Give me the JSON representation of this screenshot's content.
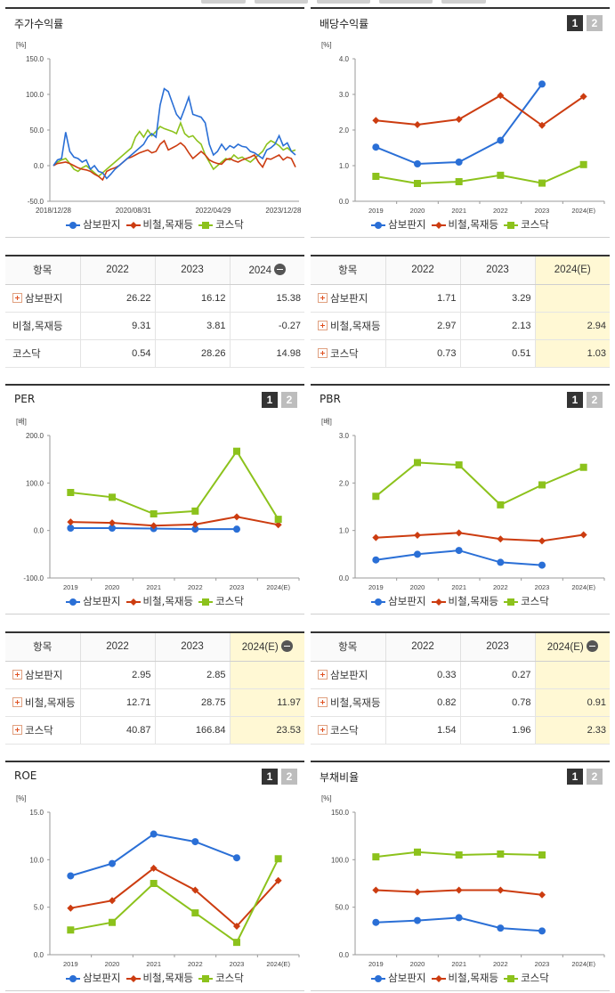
{
  "colors": {
    "sambo": "#2a6fd6",
    "nonmetal": "#cc3c10",
    "kosdaq": "#8cc21c"
  },
  "legend_names": [
    "삼보판지",
    "비철,목재등",
    "코스닥"
  ],
  "tables": [
    {
      "head": [
        "항목",
        "2022",
        "2023",
        "2024"
      ],
      "minus_icon": true,
      "est_col": false,
      "rows": [
        {
          "name": "삼보판지",
          "plus": true,
          "vals": [
            "26.22",
            "16.12",
            "15.38"
          ]
        },
        {
          "name": "비철,목재등",
          "plus": false,
          "vals": [
            "9.31",
            "3.81",
            "-0.27"
          ]
        },
        {
          "name": "코스닥",
          "plus": false,
          "vals": [
            "0.54",
            "28.26",
            "14.98"
          ]
        }
      ]
    },
    {
      "head": [
        "항목",
        "2022",
        "2023",
        "2024(E)"
      ],
      "minus_icon": false,
      "est_col": true,
      "rows": [
        {
          "name": "삼보판지",
          "plus": true,
          "vals": [
            "1.71",
            "3.29",
            ""
          ]
        },
        {
          "name": "비철,목재등",
          "plus": true,
          "vals": [
            "2.97",
            "2.13",
            "2.94"
          ]
        },
        {
          "name": "코스닥",
          "plus": true,
          "vals": [
            "0.73",
            "0.51",
            "1.03"
          ]
        }
      ]
    },
    {
      "head": [
        "항목",
        "2022",
        "2023",
        "2024(E)"
      ],
      "minus_icon": true,
      "est_col": true,
      "rows": [
        {
          "name": "삼보판지",
          "plus": true,
          "vals": [
            "2.95",
            "2.85",
            ""
          ]
        },
        {
          "name": "비철,목재등",
          "plus": true,
          "vals": [
            "12.71",
            "28.75",
            "11.97"
          ]
        },
        {
          "name": "코스닥",
          "plus": true,
          "vals": [
            "40.87",
            "166.84",
            "23.53"
          ]
        }
      ]
    },
    {
      "head": [
        "항목",
        "2022",
        "2023",
        "2024(E)"
      ],
      "minus_icon": true,
      "est_col": true,
      "rows": [
        {
          "name": "삼보판지",
          "plus": true,
          "vals": [
            "0.33",
            "0.27",
            ""
          ]
        },
        {
          "name": "비철,목재등",
          "plus": true,
          "vals": [
            "0.82",
            "0.78",
            "0.91"
          ]
        },
        {
          "name": "코스닥",
          "plus": true,
          "vals": [
            "1.54",
            "1.96",
            "2.33"
          ]
        }
      ]
    }
  ],
  "chart_data": [
    {
      "title": "주가수익률",
      "type": "line",
      "unit": "[%]",
      "pager": false,
      "ylim": [
        -50,
        150
      ],
      "yticks": [
        "-50.0",
        "0.0",
        "50.0",
        "100.0",
        "150.0"
      ],
      "xticks": [
        "2018/12/28",
        "2020/08/31",
        "2022/04/29",
        "2023/12/28"
      ],
      "grid": false,
      "legend": "bottom",
      "series": [
        {
          "name": "삼보판지",
          "values": [
            0,
            8,
            10,
            47,
            20,
            12,
            10,
            5,
            8,
            -5,
            0,
            -8,
            -10,
            -18,
            -12,
            -5,
            0,
            5,
            10,
            15,
            20,
            25,
            30,
            40,
            45,
            40,
            85,
            108,
            104,
            88,
            72,
            65,
            80,
            96,
            72,
            70,
            68,
            60,
            30,
            15,
            20,
            30,
            22,
            28,
            25,
            30,
            27,
            26,
            20,
            18,
            14,
            10,
            22,
            25,
            30,
            42,
            28,
            32,
            20,
            15
          ]
        },
        {
          "name": "비철,목재등",
          "values": [
            0,
            3,
            4,
            5,
            3,
            0,
            -3,
            -5,
            -6,
            -8,
            -12,
            -15,
            -20,
            -8,
            -5,
            -3,
            0,
            5,
            10,
            12,
            15,
            18,
            20,
            22,
            18,
            20,
            30,
            35,
            22,
            25,
            28,
            32,
            27,
            18,
            10,
            15,
            20,
            15,
            8,
            5,
            3,
            2,
            8,
            10,
            7,
            5,
            8,
            10,
            12,
            15,
            5,
            -2,
            10,
            9,
            12,
            15,
            8,
            12,
            10,
            -2
          ]
        },
        {
          "name": "코스닥",
          "values": [
            0,
            5,
            8,
            10,
            3,
            -5,
            -8,
            -3,
            0,
            -5,
            -10,
            -15,
            -10,
            -5,
            0,
            5,
            10,
            15,
            20,
            25,
            40,
            48,
            40,
            50,
            42,
            48,
            55,
            52,
            50,
            48,
            45,
            60,
            45,
            40,
            42,
            35,
            30,
            15,
            5,
            -5,
            0,
            5,
            10,
            8,
            15,
            10,
            12,
            8,
            5,
            10,
            15,
            20,
            30,
            35,
            32,
            28,
            22,
            25,
            20,
            22
          ]
        }
      ]
    },
    {
      "title": "배당수익률",
      "type": "line",
      "unit": "[%]",
      "pager": true,
      "ylim": [
        0,
        4
      ],
      "yticks": [
        "0.0",
        "1.0",
        "2.0",
        "3.0",
        "4.0"
      ],
      "categories": [
        "2019",
        "2020",
        "2021",
        "2022",
        "2023",
        "2024(E)"
      ],
      "grid": false,
      "legend": "bottom",
      "series": [
        {
          "name": "삼보판지",
          "values": [
            1.52,
            1.05,
            1.1,
            1.71,
            3.29,
            null
          ]
        },
        {
          "name": "비철,목재등",
          "values": [
            2.27,
            2.15,
            2.3,
            2.97,
            2.13,
            2.94
          ]
        },
        {
          "name": "코스닥",
          "values": [
            0.7,
            0.5,
            0.55,
            0.73,
            0.51,
            1.03
          ]
        }
      ]
    },
    {
      "title": "PER",
      "type": "line",
      "unit": "[배]",
      "pager": true,
      "ylim": [
        -100,
        200
      ],
      "yticks": [
        "-100.0",
        "0.0",
        "100.0",
        "200.0"
      ],
      "categories": [
        "2019",
        "2020",
        "2021",
        "2022",
        "2023",
        "2024(E)"
      ],
      "grid": false,
      "legend": "bottom",
      "series": [
        {
          "name": "삼보판지",
          "values": [
            5,
            5,
            4,
            2.95,
            2.85,
            null
          ]
        },
        {
          "name": "비철,목재등",
          "values": [
            18,
            16,
            10,
            12.71,
            28.75,
            11.97
          ]
        },
        {
          "name": "코스닥",
          "values": [
            80,
            70,
            35,
            40.87,
            166.84,
            23.53
          ]
        }
      ]
    },
    {
      "title": "PBR",
      "type": "line",
      "unit": "[배]",
      "pager": true,
      "ylim": [
        0,
        3
      ],
      "yticks": [
        "0.0",
        "1.0",
        "2.0",
        "3.0"
      ],
      "categories": [
        "2019",
        "2020",
        "2021",
        "2022",
        "2023",
        "2024(E)"
      ],
      "grid": false,
      "legend": "bottom",
      "series": [
        {
          "name": "삼보판지",
          "values": [
            0.38,
            0.5,
            0.58,
            0.33,
            0.27,
            null
          ]
        },
        {
          "name": "비철,목재등",
          "values": [
            0.85,
            0.9,
            0.95,
            0.82,
            0.78,
            0.91
          ]
        },
        {
          "name": "코스닥",
          "values": [
            1.72,
            2.43,
            2.38,
            1.54,
            1.96,
            2.33
          ]
        }
      ]
    },
    {
      "title": "ROE",
      "type": "line",
      "unit": "[%]",
      "pager": true,
      "ylim": [
        0,
        15
      ],
      "yticks": [
        "0.0",
        "5.0",
        "10.0",
        "15.0"
      ],
      "categories": [
        "2019",
        "2020",
        "2021",
        "2022",
        "2023",
        "2024(E)"
      ],
      "grid": false,
      "legend": "bottom",
      "series": [
        {
          "name": "삼보판지",
          "values": [
            8.3,
            9.6,
            12.7,
            11.9,
            10.2,
            null
          ]
        },
        {
          "name": "비철,목재등",
          "values": [
            4.9,
            5.7,
            9.1,
            6.8,
            3.0,
            7.8
          ]
        },
        {
          "name": "코스닥",
          "values": [
            2.6,
            3.4,
            7.5,
            4.4,
            1.3,
            10.1
          ]
        }
      ]
    },
    {
      "title": "부채비율",
      "type": "line",
      "unit": "[%]",
      "pager": true,
      "ylim": [
        0,
        150
      ],
      "yticks": [
        "0.0",
        "50.0",
        "100.0",
        "150.0"
      ],
      "categories": [
        "2019",
        "2020",
        "2021",
        "2022",
        "2023",
        "2024(E)"
      ],
      "grid": false,
      "legend": "bottom",
      "series": [
        {
          "name": "삼보판지",
          "values": [
            34,
            36,
            39,
            28,
            25,
            null
          ]
        },
        {
          "name": "비철,목재등",
          "values": [
            68,
            66,
            68,
            68,
            63,
            null
          ]
        },
        {
          "name": "코스닥",
          "values": [
            103,
            108,
            105,
            106,
            105,
            null
          ]
        }
      ]
    }
  ]
}
